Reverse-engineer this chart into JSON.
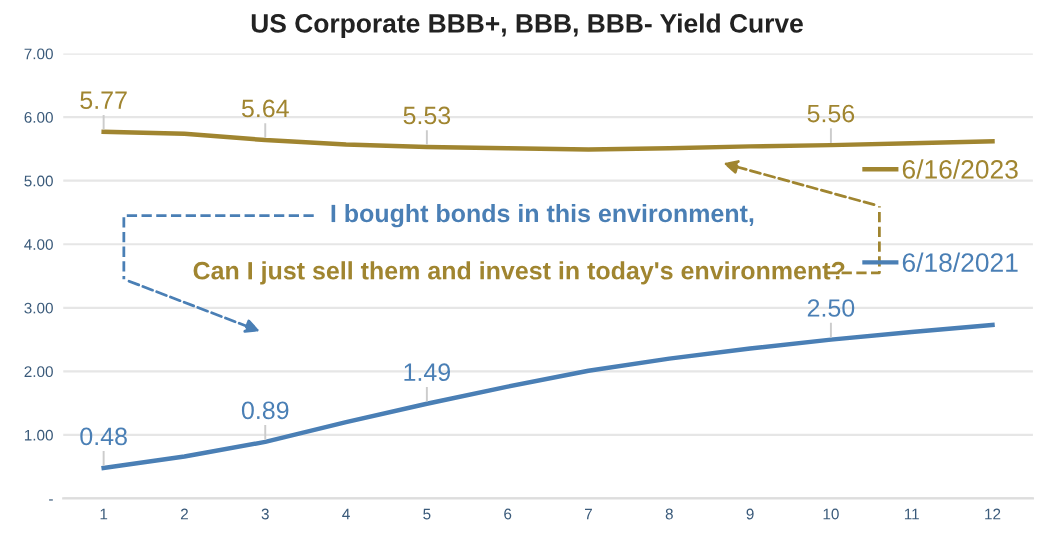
{
  "chart_data": {
    "type": "line",
    "title": "US Corporate BBB+, BBB, BBB- Yield Curve",
    "categories": [
      "1",
      "2",
      "3",
      "4",
      "5",
      "6",
      "7",
      "8",
      "9",
      "10",
      "11",
      "12"
    ],
    "series": [
      {
        "name": "6/16/2023",
        "color": "#a08530",
        "values": [
          5.77,
          5.74,
          5.64,
          5.57,
          5.53,
          5.51,
          5.49,
          5.51,
          5.54,
          5.56,
          5.59,
          5.62
        ],
        "value_labels": [
          "5.77",
          null,
          "5.64",
          null,
          "5.53",
          null,
          null,
          null,
          null,
          "5.56",
          null,
          null
        ]
      },
      {
        "name": "6/18/2021",
        "color": "#4a7fb5",
        "values": [
          0.48,
          0.66,
          0.89,
          1.2,
          1.49,
          1.76,
          2.01,
          2.2,
          2.36,
          2.5,
          2.62,
          2.73
        ],
        "value_labels": [
          "0.48",
          null,
          "0.89",
          null,
          "1.49",
          null,
          null,
          null,
          null,
          "2.50",
          null,
          null
        ]
      }
    ],
    "ylim": [
      0,
      7
    ],
    "yticks": [
      {
        "value": 0,
        "label": "-"
      },
      {
        "value": 1,
        "label": "1.00"
      },
      {
        "value": 2,
        "label": "2.00"
      },
      {
        "value": 3,
        "label": "3.00"
      },
      {
        "value": 4,
        "label": "4.00"
      },
      {
        "value": 5,
        "label": "5.00"
      },
      {
        "value": 6,
        "label": "6.00"
      },
      {
        "value": 7,
        "label": "7.00"
      }
    ],
    "grid": "y",
    "legend": "right",
    "marker": "none",
    "line_style": "solid",
    "annotations": [
      "I bought bonds in this environment,",
      "Can I just sell them and invest in today's environment?"
    ]
  }
}
